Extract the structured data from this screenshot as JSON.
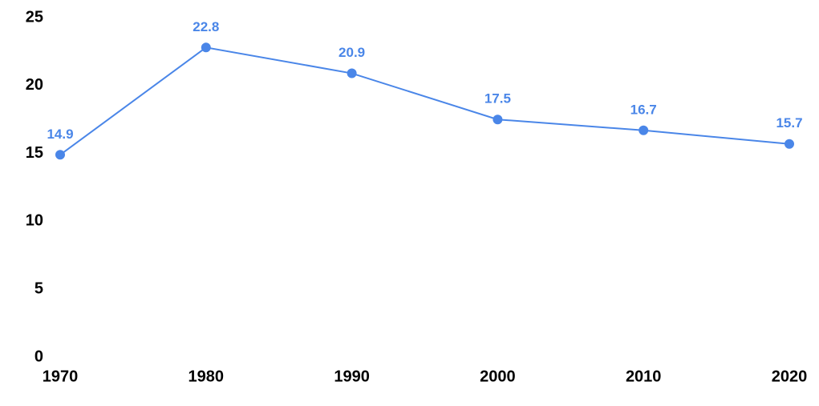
{
  "chart_data": {
    "type": "line",
    "x": [
      1970,
      1980,
      1990,
      2000,
      2010,
      2020
    ],
    "values": [
      14.9,
      22.8,
      20.9,
      17.5,
      16.7,
      15.7
    ],
    "color": "#4a86e8",
    "xlim": [
      1970,
      2020
    ],
    "xticks": [
      1970,
      1980,
      1990,
      2000,
      2010,
      2020
    ],
    "ylim": [
      0,
      25
    ],
    "yticks": [
      0,
      5,
      10,
      15,
      20,
      25
    ],
    "grid": false,
    "data_labels": true
  }
}
